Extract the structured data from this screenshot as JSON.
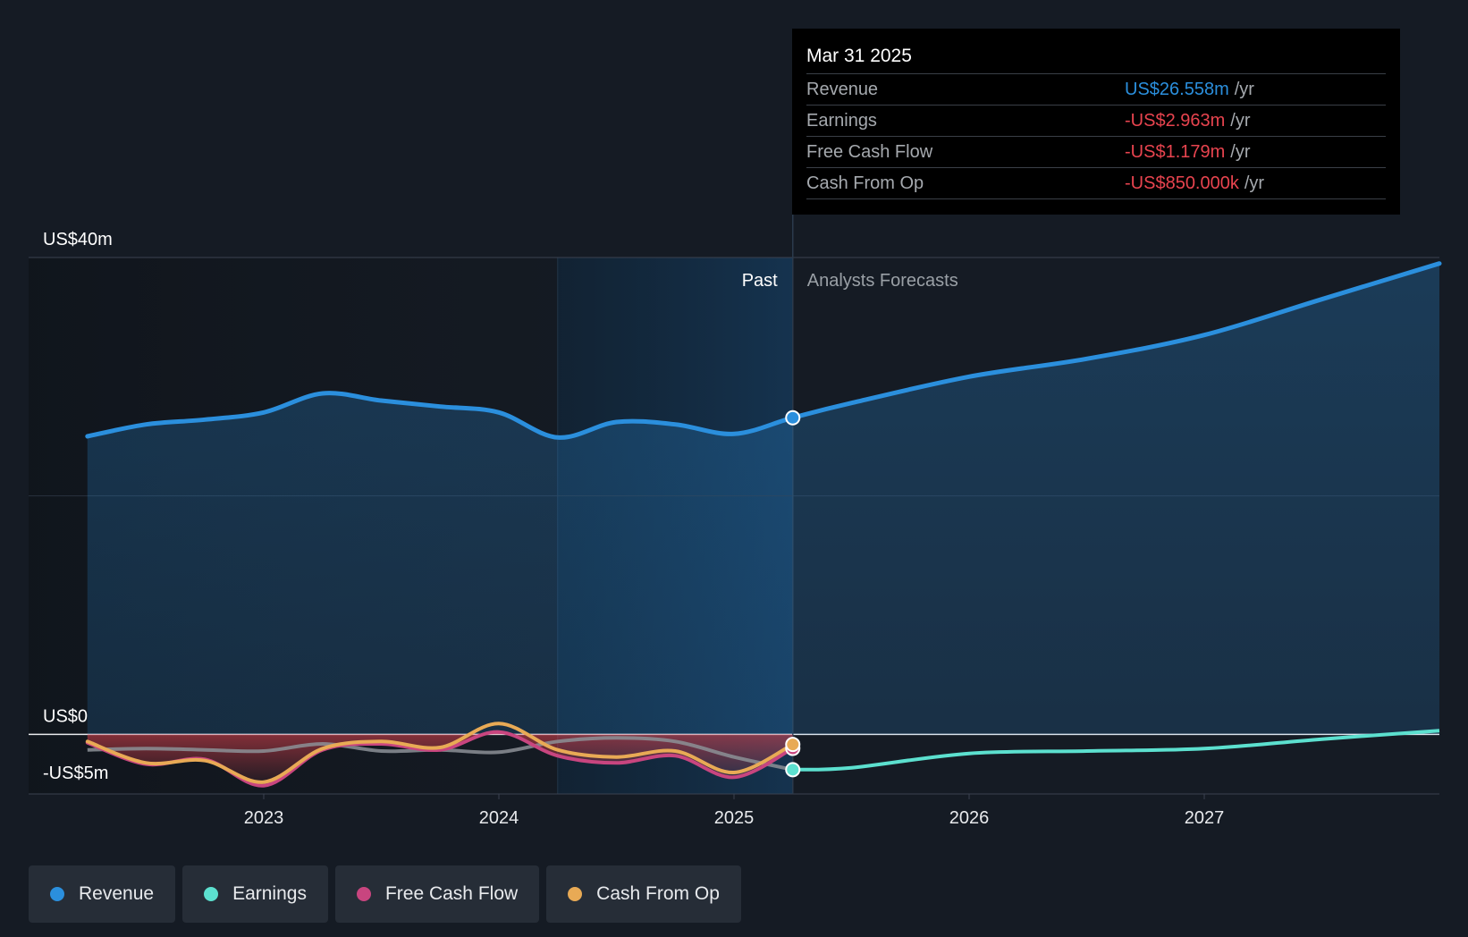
{
  "colors": {
    "revenue": "#2b8fdd",
    "earnings": "#5ce0cf",
    "free_cash_flow": "#c8457f",
    "cash_from_op": "#e8aa55",
    "negative_value": "#e8444f",
    "background": "#151b24"
  },
  "tooltip": {
    "date": "Mar 31 2025",
    "rows": [
      {
        "label": "Revenue",
        "value": "US$26.558m",
        "unit": "/yr",
        "color": "#2b8fdd"
      },
      {
        "label": "Earnings",
        "value": "-US$2.963m",
        "unit": "/yr",
        "color": "#e8444f"
      },
      {
        "label": "Free Cash Flow",
        "value": "-US$1.179m",
        "unit": "/yr",
        "color": "#e8444f"
      },
      {
        "label": "Cash From Op",
        "value": "-US$850.000k",
        "unit": "/yr",
        "color": "#e8444f"
      }
    ]
  },
  "legend": [
    {
      "label": "Revenue",
      "color": "#2b8fdd"
    },
    {
      "label": "Earnings",
      "color": "#5ce0cf"
    },
    {
      "label": "Free Cash Flow",
      "color": "#c8457f"
    },
    {
      "label": "Cash From Op",
      "color": "#e8aa55"
    }
  ],
  "chart_data": {
    "type": "line",
    "title": "",
    "xlabel": "",
    "ylabel": "",
    "ylim": [
      -5,
      40
    ],
    "y_tick_labels": [
      {
        "value": 40,
        "label": "US$40m"
      },
      {
        "value": 0,
        "label": "US$0"
      },
      {
        "value": -5,
        "label": "-US$5m"
      }
    ],
    "xlim": [
      2022.0,
      2028.0
    ],
    "x_ticks": [
      2023,
      2024,
      2025,
      2026,
      2027
    ],
    "past_label": "Past",
    "forecast_label": "Analysts Forecasts",
    "divider_x": 2025.25,
    "highlight_start_x": 2024.25,
    "grid": true,
    "legend_position": "bottom-left",
    "series": [
      {
        "name": "Revenue",
        "color": "#2b8fdd",
        "points": [
          [
            2022.25,
            25.0
          ],
          [
            2022.5,
            26.0
          ],
          [
            2022.75,
            26.4
          ],
          [
            2023.0,
            27.0
          ],
          [
            2023.25,
            28.6
          ],
          [
            2023.5,
            28.0
          ],
          [
            2023.75,
            27.5
          ],
          [
            2024.0,
            27.0
          ],
          [
            2024.25,
            24.9
          ],
          [
            2024.5,
            26.2
          ],
          [
            2024.75,
            26.0
          ],
          [
            2025.0,
            25.2
          ],
          [
            2025.25,
            26.558
          ],
          [
            2025.5,
            27.8
          ],
          [
            2026.0,
            30.0
          ],
          [
            2026.5,
            31.5
          ],
          [
            2027.0,
            33.5
          ],
          [
            2027.5,
            36.5
          ],
          [
            2028.0,
            39.5
          ]
        ]
      },
      {
        "name": "Earnings",
        "color": "#5ce0cf",
        "points": [
          [
            2022.25,
            -1.3
          ],
          [
            2022.5,
            -1.2
          ],
          [
            2022.75,
            -1.3
          ],
          [
            2023.0,
            -1.4
          ],
          [
            2023.25,
            -0.8
          ],
          [
            2023.5,
            -1.4
          ],
          [
            2023.75,
            -1.3
          ],
          [
            2024.0,
            -1.5
          ],
          [
            2024.25,
            -0.6
          ],
          [
            2024.5,
            -0.3
          ],
          [
            2024.75,
            -0.6
          ],
          [
            2025.0,
            -1.9
          ],
          [
            2025.25,
            -2.963
          ],
          [
            2025.5,
            -2.8
          ],
          [
            2026.0,
            -1.6
          ],
          [
            2026.5,
            -1.4
          ],
          [
            2027.0,
            -1.2
          ],
          [
            2027.5,
            -0.4
          ],
          [
            2028.0,
            0.3
          ]
        ]
      },
      {
        "name": "Free Cash Flow",
        "color": "#c8457f",
        "points": [
          [
            2022.25,
            -0.7
          ],
          [
            2022.5,
            -2.5
          ],
          [
            2022.75,
            -2.1
          ],
          [
            2023.0,
            -4.3
          ],
          [
            2023.25,
            -1.3
          ],
          [
            2023.5,
            -0.8
          ],
          [
            2023.75,
            -1.3
          ],
          [
            2024.0,
            0.2
          ],
          [
            2024.25,
            -1.8
          ],
          [
            2024.5,
            -2.4
          ],
          [
            2024.75,
            -1.8
          ],
          [
            2025.0,
            -3.6
          ],
          [
            2025.25,
            -1.179
          ]
        ]
      },
      {
        "name": "Cash From Op",
        "color": "#e8aa55",
        "points": [
          [
            2022.25,
            -0.6
          ],
          [
            2022.5,
            -2.4
          ],
          [
            2022.75,
            -2.2
          ],
          [
            2023.0,
            -4.0
          ],
          [
            2023.25,
            -1.2
          ],
          [
            2023.5,
            -0.6
          ],
          [
            2023.75,
            -1.1
          ],
          [
            2024.0,
            0.9
          ],
          [
            2024.25,
            -1.3
          ],
          [
            2024.5,
            -1.9
          ],
          [
            2024.75,
            -1.4
          ],
          [
            2025.0,
            -3.2
          ],
          [
            2025.25,
            -0.85
          ]
        ]
      }
    ]
  }
}
